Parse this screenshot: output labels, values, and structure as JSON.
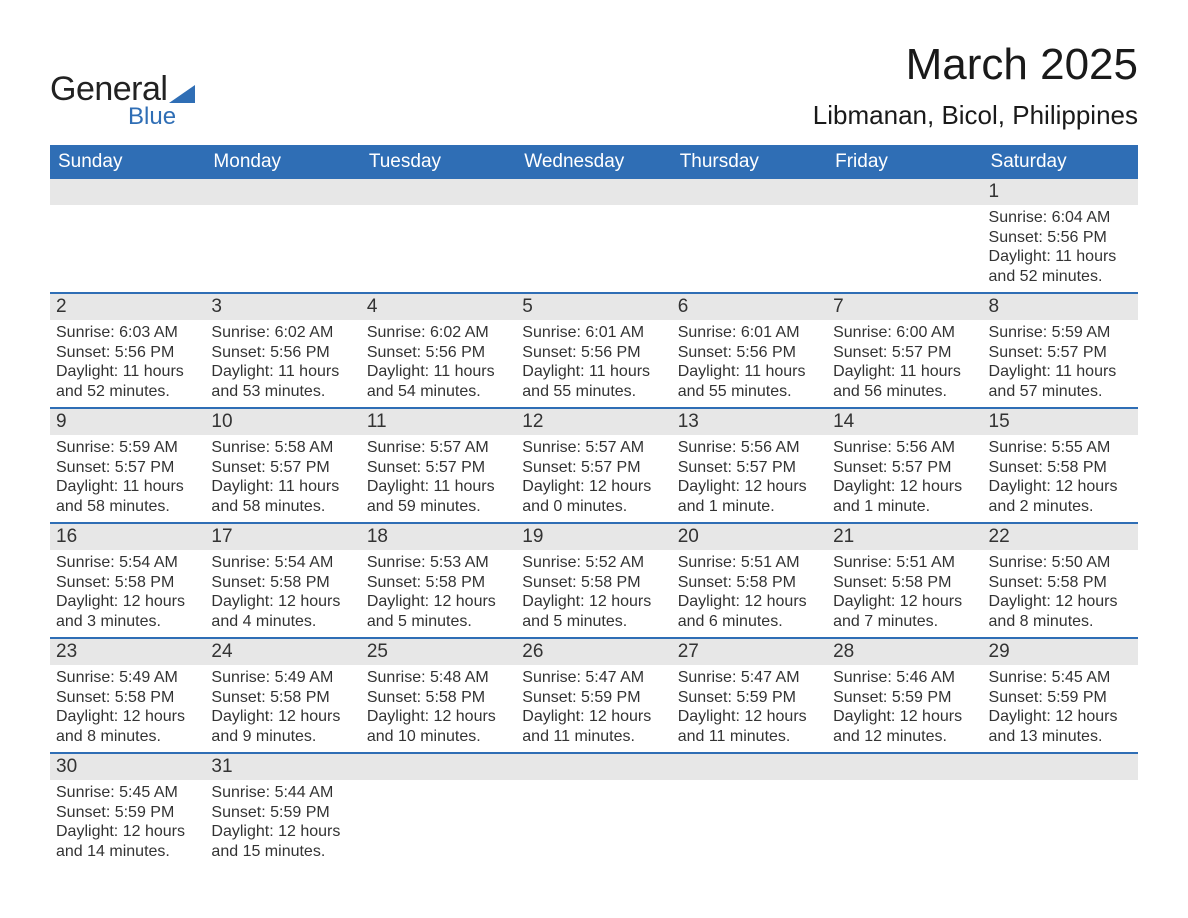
{
  "logo": {
    "text1": "General",
    "text2": "Blue",
    "accent_color": "#2f6eb5"
  },
  "title": "March 2025",
  "location": "Libmanan, Bicol, Philippines",
  "header_bg": "#2f6eb5",
  "header_fg": "#ffffff",
  "daynum_bg": "#e7e7e7",
  "row_border": "#2f6eb5",
  "weekdays": [
    "Sunday",
    "Monday",
    "Tuesday",
    "Wednesday",
    "Thursday",
    "Friday",
    "Saturday"
  ],
  "weeks": [
    [
      null,
      null,
      null,
      null,
      null,
      null,
      {
        "n": "1",
        "sunrise": "Sunrise: 6:04 AM",
        "sunset": "Sunset: 5:56 PM",
        "daylight": "Daylight: 11 hours and 52 minutes."
      }
    ],
    [
      {
        "n": "2",
        "sunrise": "Sunrise: 6:03 AM",
        "sunset": "Sunset: 5:56 PM",
        "daylight": "Daylight: 11 hours and 52 minutes."
      },
      {
        "n": "3",
        "sunrise": "Sunrise: 6:02 AM",
        "sunset": "Sunset: 5:56 PM",
        "daylight": "Daylight: 11 hours and 53 minutes."
      },
      {
        "n": "4",
        "sunrise": "Sunrise: 6:02 AM",
        "sunset": "Sunset: 5:56 PM",
        "daylight": "Daylight: 11 hours and 54 minutes."
      },
      {
        "n": "5",
        "sunrise": "Sunrise: 6:01 AM",
        "sunset": "Sunset: 5:56 PM",
        "daylight": "Daylight: 11 hours and 55 minutes."
      },
      {
        "n": "6",
        "sunrise": "Sunrise: 6:01 AM",
        "sunset": "Sunset: 5:56 PM",
        "daylight": "Daylight: 11 hours and 55 minutes."
      },
      {
        "n": "7",
        "sunrise": "Sunrise: 6:00 AM",
        "sunset": "Sunset: 5:57 PM",
        "daylight": "Daylight: 11 hours and 56 minutes."
      },
      {
        "n": "8",
        "sunrise": "Sunrise: 5:59 AM",
        "sunset": "Sunset: 5:57 PM",
        "daylight": "Daylight: 11 hours and 57 minutes."
      }
    ],
    [
      {
        "n": "9",
        "sunrise": "Sunrise: 5:59 AM",
        "sunset": "Sunset: 5:57 PM",
        "daylight": "Daylight: 11 hours and 58 minutes."
      },
      {
        "n": "10",
        "sunrise": "Sunrise: 5:58 AM",
        "sunset": "Sunset: 5:57 PM",
        "daylight": "Daylight: 11 hours and 58 minutes."
      },
      {
        "n": "11",
        "sunrise": "Sunrise: 5:57 AM",
        "sunset": "Sunset: 5:57 PM",
        "daylight": "Daylight: 11 hours and 59 minutes."
      },
      {
        "n": "12",
        "sunrise": "Sunrise: 5:57 AM",
        "sunset": "Sunset: 5:57 PM",
        "daylight": "Daylight: 12 hours and 0 minutes."
      },
      {
        "n": "13",
        "sunrise": "Sunrise: 5:56 AM",
        "sunset": "Sunset: 5:57 PM",
        "daylight": "Daylight: 12 hours and 1 minute."
      },
      {
        "n": "14",
        "sunrise": "Sunrise: 5:56 AM",
        "sunset": "Sunset: 5:57 PM",
        "daylight": "Daylight: 12 hours and 1 minute."
      },
      {
        "n": "15",
        "sunrise": "Sunrise: 5:55 AM",
        "sunset": "Sunset: 5:58 PM",
        "daylight": "Daylight: 12 hours and 2 minutes."
      }
    ],
    [
      {
        "n": "16",
        "sunrise": "Sunrise: 5:54 AM",
        "sunset": "Sunset: 5:58 PM",
        "daylight": "Daylight: 12 hours and 3 minutes."
      },
      {
        "n": "17",
        "sunrise": "Sunrise: 5:54 AM",
        "sunset": "Sunset: 5:58 PM",
        "daylight": "Daylight: 12 hours and 4 minutes."
      },
      {
        "n": "18",
        "sunrise": "Sunrise: 5:53 AM",
        "sunset": "Sunset: 5:58 PM",
        "daylight": "Daylight: 12 hours and 5 minutes."
      },
      {
        "n": "19",
        "sunrise": "Sunrise: 5:52 AM",
        "sunset": "Sunset: 5:58 PM",
        "daylight": "Daylight: 12 hours and 5 minutes."
      },
      {
        "n": "20",
        "sunrise": "Sunrise: 5:51 AM",
        "sunset": "Sunset: 5:58 PM",
        "daylight": "Daylight: 12 hours and 6 minutes."
      },
      {
        "n": "21",
        "sunrise": "Sunrise: 5:51 AM",
        "sunset": "Sunset: 5:58 PM",
        "daylight": "Daylight: 12 hours and 7 minutes."
      },
      {
        "n": "22",
        "sunrise": "Sunrise: 5:50 AM",
        "sunset": "Sunset: 5:58 PM",
        "daylight": "Daylight: 12 hours and 8 minutes."
      }
    ],
    [
      {
        "n": "23",
        "sunrise": "Sunrise: 5:49 AM",
        "sunset": "Sunset: 5:58 PM",
        "daylight": "Daylight: 12 hours and 8 minutes."
      },
      {
        "n": "24",
        "sunrise": "Sunrise: 5:49 AM",
        "sunset": "Sunset: 5:58 PM",
        "daylight": "Daylight: 12 hours and 9 minutes."
      },
      {
        "n": "25",
        "sunrise": "Sunrise: 5:48 AM",
        "sunset": "Sunset: 5:58 PM",
        "daylight": "Daylight: 12 hours and 10 minutes."
      },
      {
        "n": "26",
        "sunrise": "Sunrise: 5:47 AM",
        "sunset": "Sunset: 5:59 PM",
        "daylight": "Daylight: 12 hours and 11 minutes."
      },
      {
        "n": "27",
        "sunrise": "Sunrise: 5:47 AM",
        "sunset": "Sunset: 5:59 PM",
        "daylight": "Daylight: 12 hours and 11 minutes."
      },
      {
        "n": "28",
        "sunrise": "Sunrise: 5:46 AM",
        "sunset": "Sunset: 5:59 PM",
        "daylight": "Daylight: 12 hours and 12 minutes."
      },
      {
        "n": "29",
        "sunrise": "Sunrise: 5:45 AM",
        "sunset": "Sunset: 5:59 PM",
        "daylight": "Daylight: 12 hours and 13 minutes."
      }
    ],
    [
      {
        "n": "30",
        "sunrise": "Sunrise: 5:45 AM",
        "sunset": "Sunset: 5:59 PM",
        "daylight": "Daylight: 12 hours and 14 minutes."
      },
      {
        "n": "31",
        "sunrise": "Sunrise: 5:44 AM",
        "sunset": "Sunset: 5:59 PM",
        "daylight": "Daylight: 12 hours and 15 minutes."
      },
      null,
      null,
      null,
      null,
      null
    ]
  ]
}
